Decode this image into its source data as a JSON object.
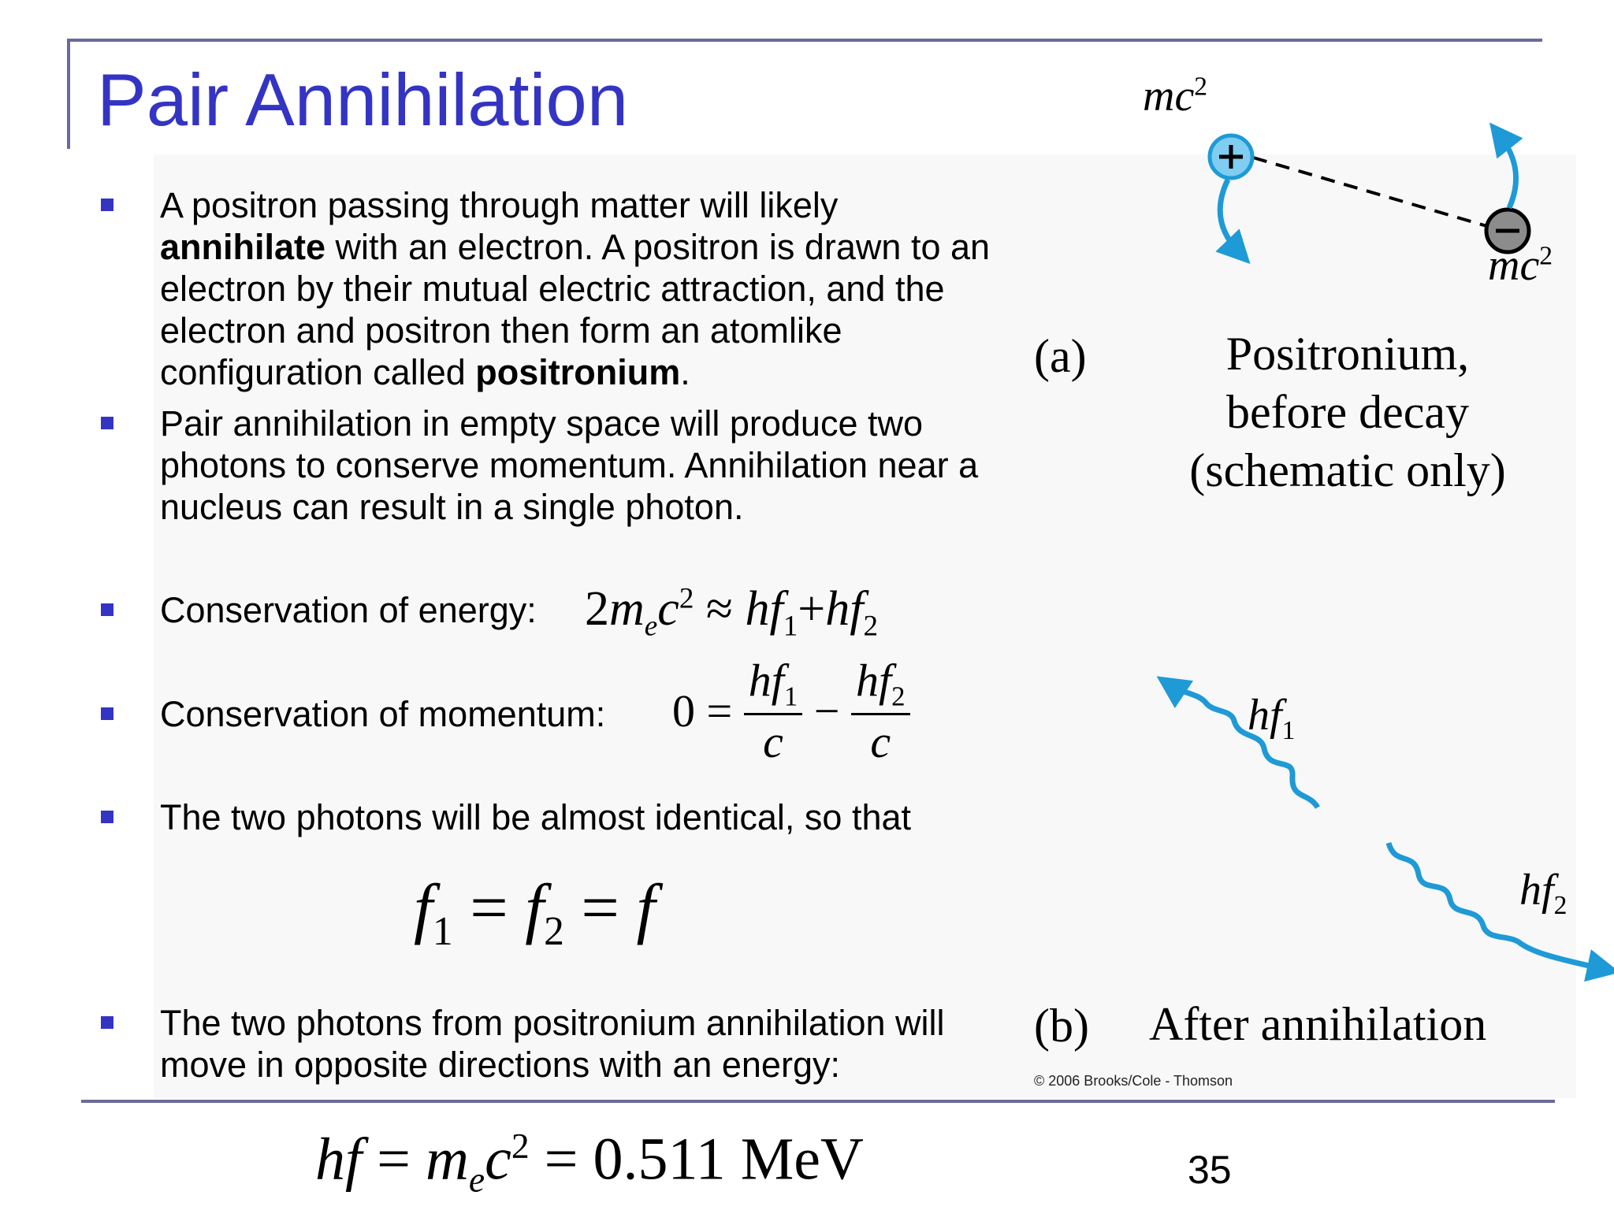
{
  "slide": {
    "title": "Pair Annihilation",
    "page_number": "35",
    "accent_color": "#3434c4",
    "frame_color": "#6a6a9a"
  },
  "bullets": [
    {
      "parts": [
        "A positron passing through matter will likely",
        "annihilate",
        " with an electron. A positron is drawn to an",
        "electron by their mutual electric attraction, and the",
        "electron and positron then form an atomlike",
        "configuration called ",
        "positronium",
        "."
      ]
    },
    {
      "lines": [
        "Pair annihilation in empty space will produce two",
        "photons to conserve momentum. Annihilation near a",
        "nucleus can result in a single photon."
      ]
    },
    {
      "text": "Conservation of energy:"
    },
    {
      "text": "Conservation of momentum:"
    },
    {
      "text": "The two photons will be almost identical, so that"
    },
    {
      "lines": [
        "The two photons from positronium annihilation will",
        "move in opposite directions with an energy:"
      ]
    }
  ],
  "equations": {
    "energy": {
      "lhs_coef": "2",
      "m": "m",
      "e": "e",
      "c": "c",
      "sq": "2",
      "approx": "≈",
      "h1": "hf",
      "one": "1",
      "plus": "+",
      "h2": "hf",
      "two": "2"
    },
    "momentum": {
      "zero": "0 =",
      "num1": "hf",
      "sub1": "1",
      "den1": "c",
      "minus": "−",
      "num2": "hf",
      "sub2": "2",
      "den2": "c"
    },
    "frequency": {
      "f1": "f",
      "s1": "1",
      "eq1": " = ",
      "f2": "f",
      "s2": "2",
      "eq2": " = ",
      "f": "f"
    },
    "hf_energy": {
      "hf": "hf",
      "eq": " = ",
      "m": "m",
      "e": "e",
      "c": "c",
      "sq": "2",
      "eq2": " = ",
      "value": "0.511 MeV"
    }
  },
  "figure": {
    "panel_a_label": "(a)",
    "panel_a_caption": [
      "Positronium,",
      "before decay",
      "(schematic only)"
    ],
    "panel_b_label": "(b)",
    "panel_b_caption": "After annihilation",
    "mc2_top": {
      "base": "mc",
      "sup": "2"
    },
    "mc2_right": {
      "base": "mc",
      "sup": "2"
    },
    "hf1": {
      "base": "hf",
      "sub": "1"
    },
    "hf2": {
      "base": "hf",
      "sub": "2"
    },
    "copyright": "© 2006 Brooks/Cole - Thomson",
    "photon_color": "#1e9ad6",
    "positron_fill": "#7fcdf0",
    "electron_fill": "#8c8c8c",
    "positron_icon": "plus-icon",
    "electron_icon": "minus-icon"
  }
}
